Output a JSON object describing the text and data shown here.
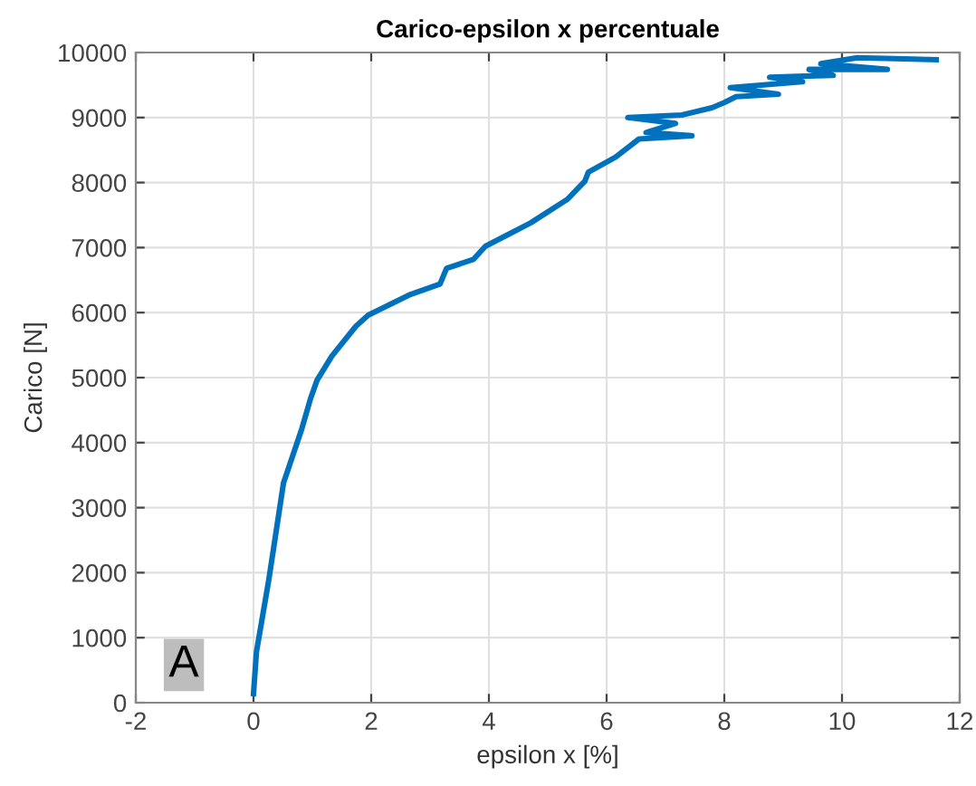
{
  "chart_data": {
    "type": "line",
    "title": "Carico-epsilon x percentuale",
    "xlabel": "epsilon x [%]",
    "ylabel": "Carico [N]",
    "annotations": [
      "A"
    ],
    "series": [
      {
        "color": "#0072bd",
        "x": [
          0,
          0.05,
          0.26,
          0.51,
          0.82,
          0.97,
          1.08,
          1.33,
          1.74,
          1.95,
          2.67,
          3.17,
          3.28,
          3.74,
          3.94,
          4.71,
          5.33,
          5.63,
          5.69,
          6.15,
          6.55,
          7.45,
          6.67,
          7.17,
          6.36,
          7.28,
          7.79,
          8.0,
          8.2,
          8.92,
          8.1,
          9.33,
          8.77,
          9.85,
          9.44,
          10.77,
          9.64,
          10.26,
          11.6
        ],
        "values": [
          140,
          780,
          1890,
          3380,
          4210,
          4680,
          4960,
          5330,
          5790,
          5960,
          6280,
          6440,
          6680,
          6820,
          7020,
          7380,
          7740,
          8020,
          8160,
          8390,
          8670,
          8720,
          8770,
          8910,
          9000,
          9040,
          9150,
          9230,
          9320,
          9360,
          9460,
          9550,
          9620,
          9650,
          9740,
          9740,
          9830,
          9920,
          9890
        ]
      }
    ],
    "xlim": [
      -2,
      12
    ],
    "xticks": [
      -2,
      0,
      2,
      4,
      6,
      8,
      10,
      12
    ],
    "ylim": [
      0,
      10000
    ],
    "yticks": [
      0,
      1000,
      2000,
      3000,
      4000,
      5000,
      6000,
      7000,
      8000,
      9000,
      10000
    ],
    "grid": true,
    "marker": "none",
    "line_style": "solid"
  }
}
